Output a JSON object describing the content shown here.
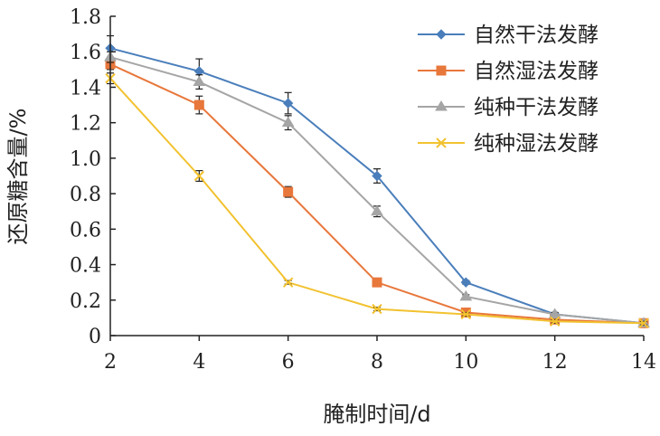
{
  "chart_data": {
    "type": "line",
    "xlabel": "腌制时间/d",
    "ylabel": "还原糖含量/%",
    "x": [
      2,
      4,
      6,
      8,
      10,
      12,
      14
    ],
    "x_ticks": [
      "2",
      "4",
      "6",
      "8",
      "10",
      "12",
      "14"
    ],
    "y_ticks": [
      "0",
      "0.2",
      "0.4",
      "0.6",
      "0.8",
      "1.0",
      "1.2",
      "1.4",
      "1.6",
      "1.8"
    ],
    "xlim": [
      2,
      14
    ],
    "ylim": [
      0,
      1.8
    ],
    "grid": false,
    "legend_position": "top-right",
    "series": [
      {
        "name": "自然干法发酵",
        "color": "#4a7ebb",
        "marker": "diamond",
        "values": [
          1.62,
          1.49,
          1.31,
          0.9,
          0.3,
          0.12,
          0.07
        ],
        "errors": [
          0.07,
          0.07,
          0.06,
          0.04,
          0.01,
          0.01,
          0.01
        ]
      },
      {
        "name": "自然湿法发酵",
        "color": "#e8773b",
        "marker": "square",
        "values": [
          1.53,
          1.3,
          0.81,
          0.3,
          0.13,
          0.09,
          0.07
        ],
        "errors": [
          0.03,
          0.05,
          0.03,
          0.01,
          0.01,
          0.01,
          0.01
        ]
      },
      {
        "name": "纯种干法发酵",
        "color": "#a5a5a5",
        "marker": "triangle",
        "values": [
          1.57,
          1.43,
          1.2,
          0.7,
          0.22,
          0.12,
          0.07
        ],
        "errors": [
          0.03,
          0.04,
          0.04,
          0.03,
          0.01,
          0.01,
          0.01
        ]
      },
      {
        "name": "纯种湿法发酵",
        "color": "#f2c230",
        "marker": "x",
        "values": [
          1.45,
          0.9,
          0.3,
          0.15,
          0.12,
          0.08,
          0.07
        ],
        "errors": [
          0.03,
          0.03,
          0.01,
          0.01,
          0.01,
          0.01,
          0.01
        ]
      }
    ]
  }
}
